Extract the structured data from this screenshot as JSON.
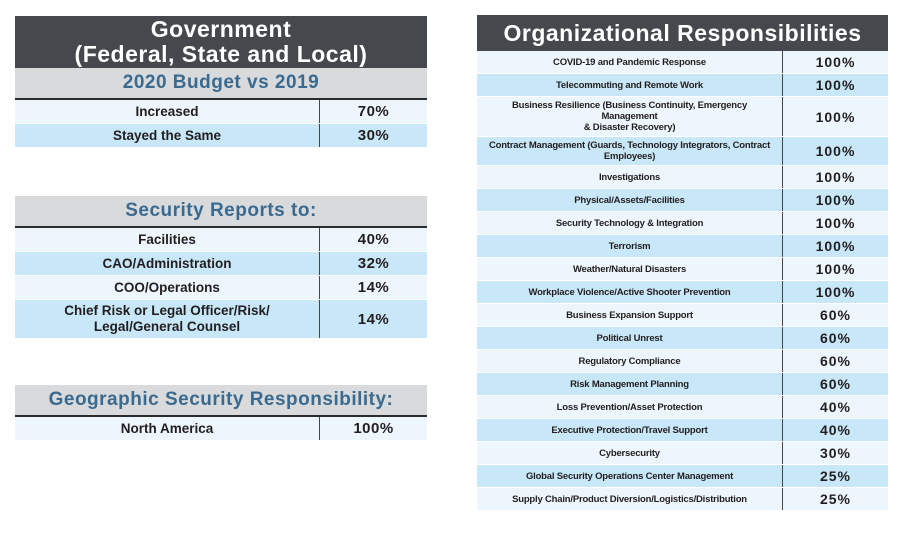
{
  "colors": {
    "dark_header_bg": "#45494E",
    "header_text": "#FFFFFF",
    "band_bg": "#D9DADB",
    "band_text": "#3A6A8F",
    "row_light": "#EDF6FD",
    "row_blue": "#C8E7F8",
    "body_text": "#221E1F",
    "rule": "#2B2B2B",
    "column_divider": "#454545"
  },
  "left_panel": {
    "title": "Government\n(Federal, State and Local)",
    "sections": [
      {
        "header": "2020 Budget vs 2019",
        "rows": [
          {
            "label": "Increased",
            "value": "70%"
          },
          {
            "label": "Stayed the Same",
            "value": "30%"
          }
        ]
      },
      {
        "header": "Security Reports to:",
        "rows": [
          {
            "label": "Facilities",
            "value": "40%"
          },
          {
            "label": "CAO/Administration",
            "value": "32%"
          },
          {
            "label": "COO/Operations",
            "value": "14%"
          },
          {
            "label": "Chief Risk or Legal Officer/Risk/\nLegal/General Counsel",
            "value": "14%"
          }
        ]
      },
      {
        "header": "Geographic Security Responsibility:",
        "rows": [
          {
            "label": "North America",
            "value": "100%"
          }
        ]
      }
    ]
  },
  "right_panel": {
    "title": "Organizational Responsibilities",
    "rows": [
      {
        "label": "COVID-19 and Pandemic Response",
        "value": "100%"
      },
      {
        "label": "Telecommuting and Remote Work",
        "value": "100%"
      },
      {
        "label": "Business Resilience (Business Continuity, Emergency Management\n& Disaster Recovery)",
        "value": "100%"
      },
      {
        "label": "Contract Management (Guards, Technology Integrators, Contract\nEmployees)",
        "value": "100%"
      },
      {
        "label": "Investigations",
        "value": "100%"
      },
      {
        "label": "Physical/Assets/Facilities",
        "value": "100%"
      },
      {
        "label": "Security Technology & Integration",
        "value": "100%"
      },
      {
        "label": "Terrorism",
        "value": "100%"
      },
      {
        "label": "Weather/Natural Disasters",
        "value": "100%"
      },
      {
        "label": "Workplace Violence/Active Shooter Prevention",
        "value": "100%"
      },
      {
        "label": "Business Expansion Support",
        "value": "60%"
      },
      {
        "label": "Political Unrest",
        "value": "60%"
      },
      {
        "label": "Regulatory Compliance",
        "value": "60%"
      },
      {
        "label": "Risk Management Planning",
        "value": "60%"
      },
      {
        "label": "Loss Prevention/Asset Protection",
        "value": "40%"
      },
      {
        "label": "Executive Protection/Travel Support",
        "value": "40%"
      },
      {
        "label": "Cybersecurity",
        "value": "30%"
      },
      {
        "label": "Global Security Operations Center Management",
        "value": "25%"
      },
      {
        "label": "Supply Chain/Product Diversion/Logistics/Distribution",
        "value": "25%"
      }
    ]
  }
}
